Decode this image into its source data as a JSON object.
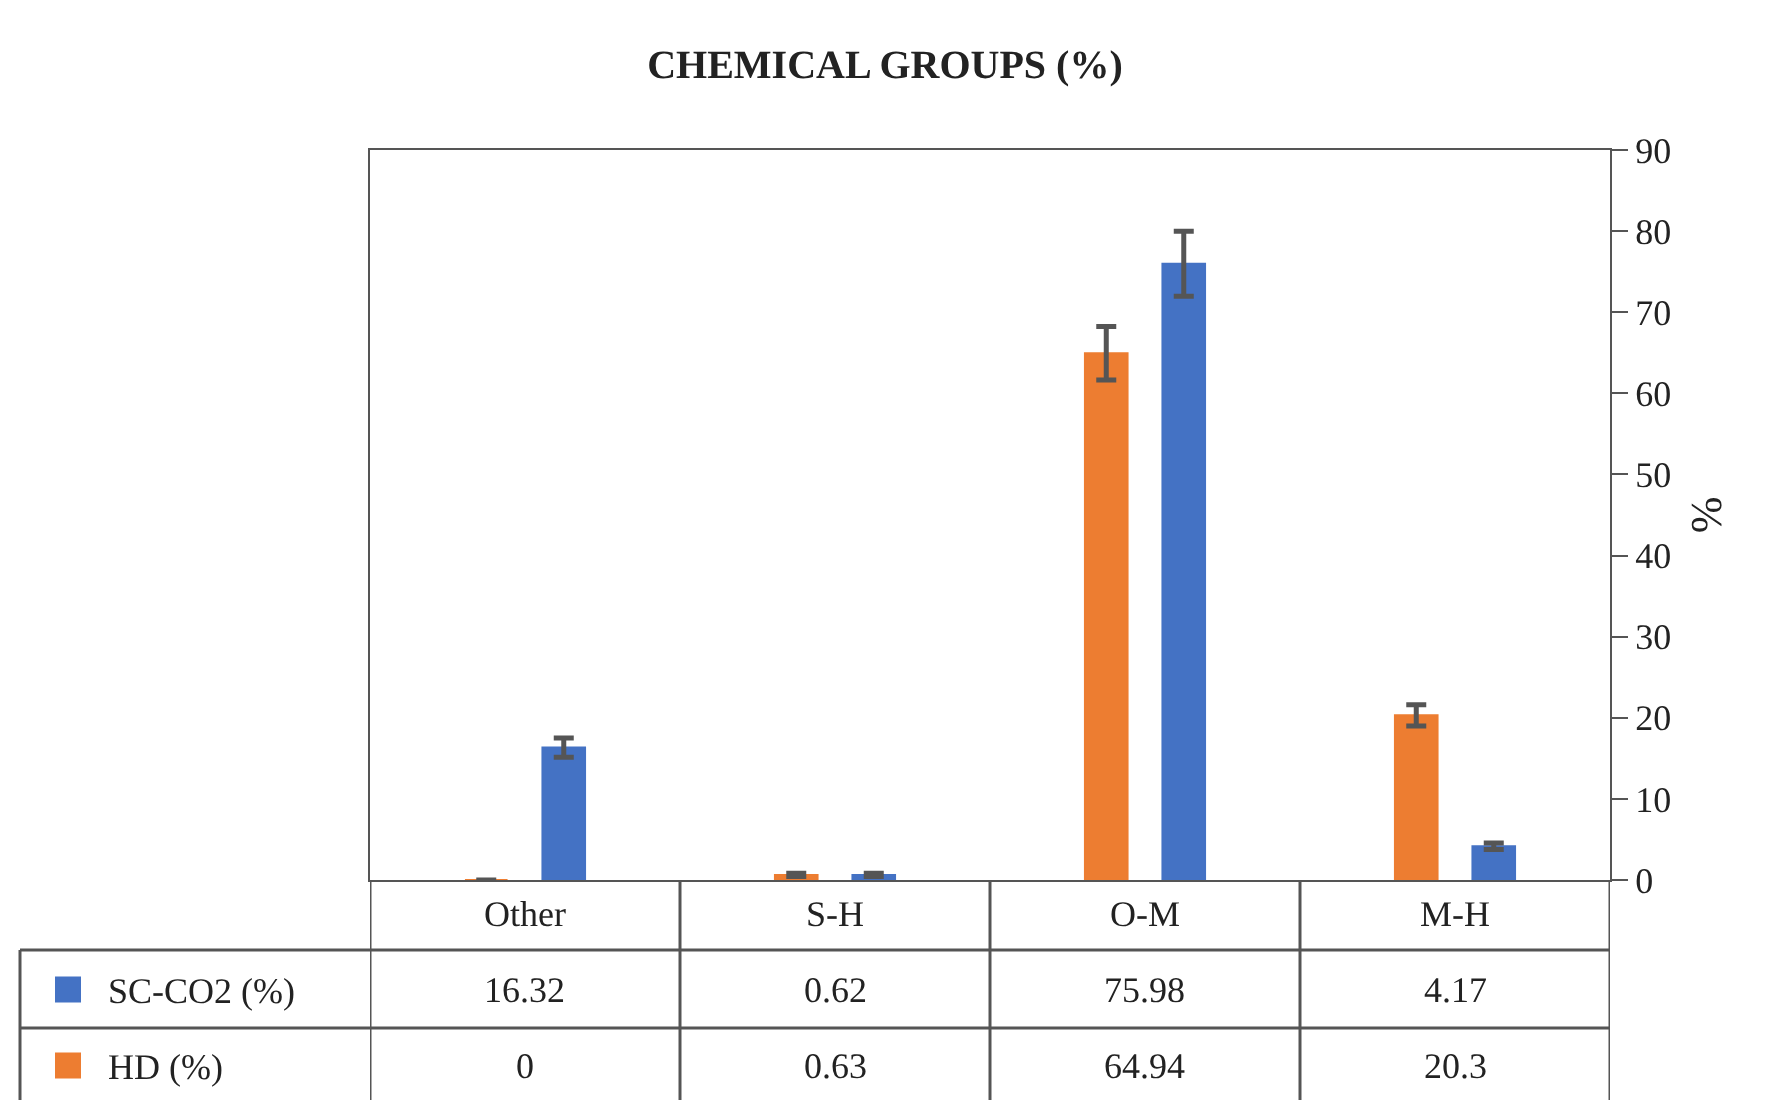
{
  "chart_data": {
    "type": "bar",
    "title": "CHEMICAL GROUPS (%)",
    "ylabel": "%",
    "categories": [
      "Other",
      "S-H",
      "O-M",
      "M-H"
    ],
    "series": [
      {
        "name": "HD (%)",
        "color": "#ed7d31",
        "values": [
          0,
          0.63,
          64.94,
          20.3
        ],
        "errors": [
          0,
          0.2,
          3.3,
          1.3
        ]
      },
      {
        "name": "SC-CO2 (%)",
        "color": "#4472c4",
        "values": [
          16.32,
          0.62,
          75.98,
          4.17
        ],
        "errors": [
          1.2,
          0.2,
          4,
          0.4
        ]
      }
    ],
    "ylim": [
      0,
      90
    ],
    "yticks": [
      0,
      10,
      20,
      30,
      40,
      50,
      60,
      70,
      80,
      90
    ],
    "data_labels": true,
    "legend": "bottom left"
  }
}
